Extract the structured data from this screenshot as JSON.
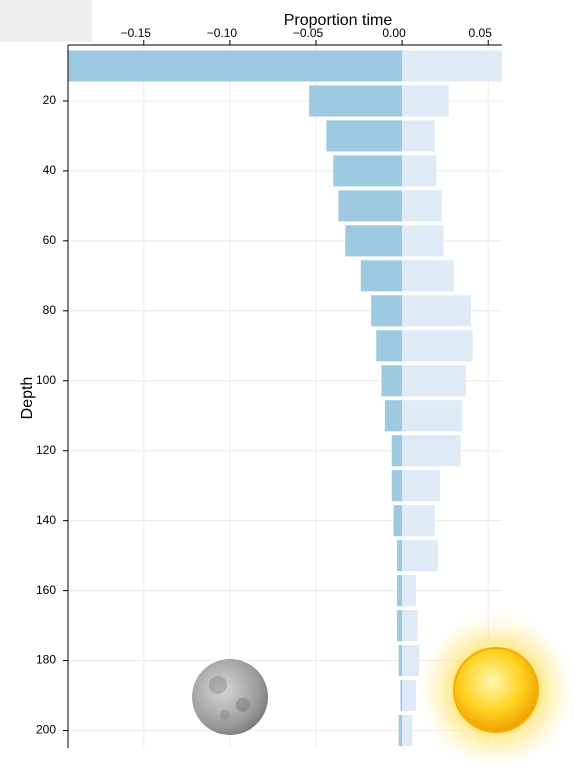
{
  "chart_data": {
    "type": "bar",
    "orientation": "horizontal",
    "x_axis_label": "Proportion time",
    "y_axis_label": "Depth",
    "y": [
      10,
      20,
      30,
      40,
      50,
      60,
      70,
      80,
      90,
      100,
      110,
      120,
      130,
      140,
      150,
      160,
      170,
      180,
      190,
      200
    ],
    "series": [
      {
        "color": "#9ecae1",
        "values": [
          -0.194,
          -0.054,
          -0.044,
          -0.04,
          -0.037,
          -0.033,
          -0.024,
          -0.018,
          -0.015,
          -0.012,
          -0.01,
          -0.006,
          -0.006,
          -0.005,
          -0.003,
          -0.003,
          -0.003,
          -0.002,
          -0.001,
          -0.002
        ]
      },
      {
        "color": "#deebf7",
        "values": [
          0.058,
          0.027,
          0.019,
          0.02,
          0.023,
          0.024,
          0.03,
          0.04,
          0.041,
          0.037,
          0.035,
          0.034,
          0.022,
          0.019,
          0.021,
          0.008,
          0.009,
          0.01,
          0.008,
          0.006
        ]
      }
    ],
    "xlim": [
      -0.194,
      0.058
    ],
    "xticks": [
      {
        "value": -0.15,
        "label": "−0.15"
      },
      {
        "value": -0.1,
        "label": "−0.10"
      },
      {
        "value": -0.05,
        "label": "−0.05"
      },
      {
        "value": 0,
        "label": "0.00"
      },
      {
        "value": 0.05,
        "label": "0.05"
      }
    ],
    "ylim": [
      4,
      205
    ],
    "yticks": [
      20,
      40,
      60,
      80,
      100,
      120,
      140,
      160,
      180,
      200
    ],
    "y_reversed": true,
    "grid": true
  }
}
